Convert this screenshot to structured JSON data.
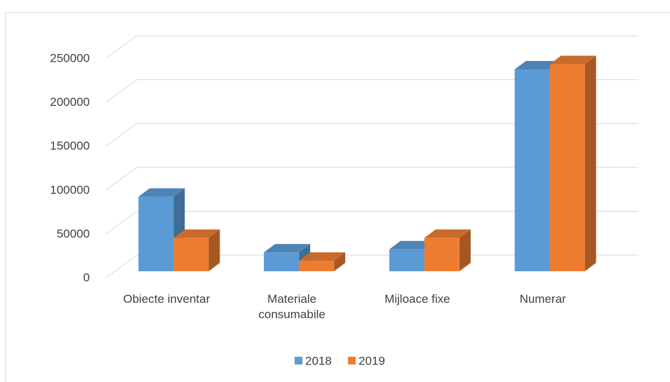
{
  "chart_data": {
    "type": "bar3d",
    "categories": [
      "Obiecte inventar",
      "Materiale consumabile",
      "Mijloace fixe",
      "Numerar"
    ],
    "series": [
      {
        "name": "2018",
        "color": "#5b9bd5",
        "values": [
          85000,
          21500,
          25000,
          230000
        ]
      },
      {
        "name": "2019",
        "color": "#ed7d31",
        "values": [
          38000,
          12000,
          38000,
          236000
        ]
      }
    ],
    "ylim": [
      0,
      250000
    ],
    "yticks": [
      0,
      50000,
      100000,
      150000,
      200000,
      250000
    ],
    "grid": true,
    "legend": "bottom"
  }
}
